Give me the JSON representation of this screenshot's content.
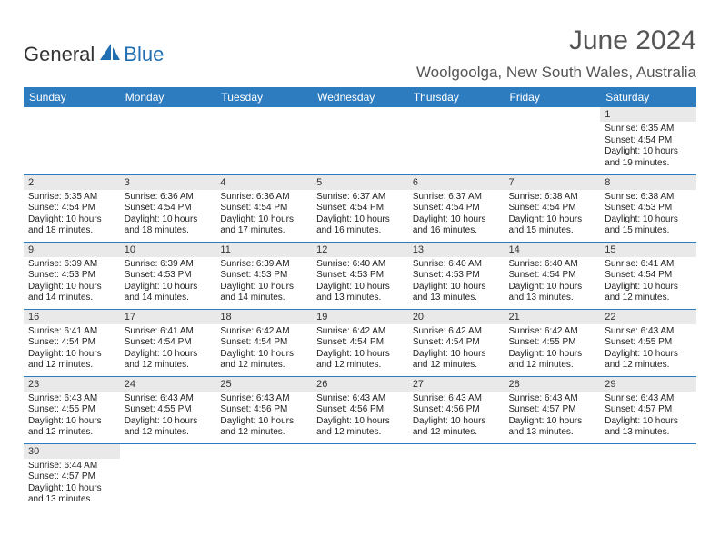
{
  "brand": {
    "part1": "General",
    "part2": "Blue"
  },
  "title": "June 2024",
  "location": "Woolgoolga, New South Wales, Australia",
  "colors": {
    "header_bg": "#2e7cc0",
    "header_fg": "#ffffff",
    "daynum_bg": "#e9e9e9",
    "cell_border": "#2e7cc0",
    "brand_blue": "#1f6fb2",
    "text": "#333333"
  },
  "dayNames": [
    "Sunday",
    "Monday",
    "Tuesday",
    "Wednesday",
    "Thursday",
    "Friday",
    "Saturday"
  ],
  "weeks": [
    [
      null,
      null,
      null,
      null,
      null,
      null,
      {
        "n": "1",
        "sr": "6:35 AM",
        "ss": "4:54 PM",
        "dl": "10 hours and 19 minutes."
      }
    ],
    [
      {
        "n": "2",
        "sr": "6:35 AM",
        "ss": "4:54 PM",
        "dl": "10 hours and 18 minutes."
      },
      {
        "n": "3",
        "sr": "6:36 AM",
        "ss": "4:54 PM",
        "dl": "10 hours and 18 minutes."
      },
      {
        "n": "4",
        "sr": "6:36 AM",
        "ss": "4:54 PM",
        "dl": "10 hours and 17 minutes."
      },
      {
        "n": "5",
        "sr": "6:37 AM",
        "ss": "4:54 PM",
        "dl": "10 hours and 16 minutes."
      },
      {
        "n": "6",
        "sr": "6:37 AM",
        "ss": "4:54 PM",
        "dl": "10 hours and 16 minutes."
      },
      {
        "n": "7",
        "sr": "6:38 AM",
        "ss": "4:54 PM",
        "dl": "10 hours and 15 minutes."
      },
      {
        "n": "8",
        "sr": "6:38 AM",
        "ss": "4:53 PM",
        "dl": "10 hours and 15 minutes."
      }
    ],
    [
      {
        "n": "9",
        "sr": "6:39 AM",
        "ss": "4:53 PM",
        "dl": "10 hours and 14 minutes."
      },
      {
        "n": "10",
        "sr": "6:39 AM",
        "ss": "4:53 PM",
        "dl": "10 hours and 14 minutes."
      },
      {
        "n": "11",
        "sr": "6:39 AM",
        "ss": "4:53 PM",
        "dl": "10 hours and 14 minutes."
      },
      {
        "n": "12",
        "sr": "6:40 AM",
        "ss": "4:53 PM",
        "dl": "10 hours and 13 minutes."
      },
      {
        "n": "13",
        "sr": "6:40 AM",
        "ss": "4:53 PM",
        "dl": "10 hours and 13 minutes."
      },
      {
        "n": "14",
        "sr": "6:40 AM",
        "ss": "4:54 PM",
        "dl": "10 hours and 13 minutes."
      },
      {
        "n": "15",
        "sr": "6:41 AM",
        "ss": "4:54 PM",
        "dl": "10 hours and 12 minutes."
      }
    ],
    [
      {
        "n": "16",
        "sr": "6:41 AM",
        "ss": "4:54 PM",
        "dl": "10 hours and 12 minutes."
      },
      {
        "n": "17",
        "sr": "6:41 AM",
        "ss": "4:54 PM",
        "dl": "10 hours and 12 minutes."
      },
      {
        "n": "18",
        "sr": "6:42 AM",
        "ss": "4:54 PM",
        "dl": "10 hours and 12 minutes."
      },
      {
        "n": "19",
        "sr": "6:42 AM",
        "ss": "4:54 PM",
        "dl": "10 hours and 12 minutes."
      },
      {
        "n": "20",
        "sr": "6:42 AM",
        "ss": "4:54 PM",
        "dl": "10 hours and 12 minutes."
      },
      {
        "n": "21",
        "sr": "6:42 AM",
        "ss": "4:55 PM",
        "dl": "10 hours and 12 minutes."
      },
      {
        "n": "22",
        "sr": "6:43 AM",
        "ss": "4:55 PM",
        "dl": "10 hours and 12 minutes."
      }
    ],
    [
      {
        "n": "23",
        "sr": "6:43 AM",
        "ss": "4:55 PM",
        "dl": "10 hours and 12 minutes."
      },
      {
        "n": "24",
        "sr": "6:43 AM",
        "ss": "4:55 PM",
        "dl": "10 hours and 12 minutes."
      },
      {
        "n": "25",
        "sr": "6:43 AM",
        "ss": "4:56 PM",
        "dl": "10 hours and 12 minutes."
      },
      {
        "n": "26",
        "sr": "6:43 AM",
        "ss": "4:56 PM",
        "dl": "10 hours and 12 minutes."
      },
      {
        "n": "27",
        "sr": "6:43 AM",
        "ss": "4:56 PM",
        "dl": "10 hours and 12 minutes."
      },
      {
        "n": "28",
        "sr": "6:43 AM",
        "ss": "4:57 PM",
        "dl": "10 hours and 13 minutes."
      },
      {
        "n": "29",
        "sr": "6:43 AM",
        "ss": "4:57 PM",
        "dl": "10 hours and 13 minutes."
      }
    ],
    [
      {
        "n": "30",
        "sr": "6:44 AM",
        "ss": "4:57 PM",
        "dl": "10 hours and 13 minutes."
      },
      null,
      null,
      null,
      null,
      null,
      null
    ]
  ],
  "labels": {
    "sunrise": "Sunrise: ",
    "sunset": "Sunset: ",
    "daylight": "Daylight: "
  }
}
